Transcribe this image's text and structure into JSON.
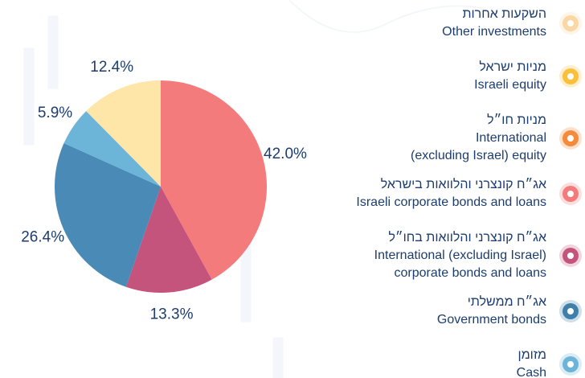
{
  "chart_data": {
    "type": "pie",
    "values": [
      42.0,
      13.3,
      26.4,
      5.9,
      12.4
    ],
    "value_labels": [
      "42.0%",
      "13.3%",
      "26.4%",
      "5.9%",
      "12.4%"
    ],
    "colors": [
      "#f47b7b",
      "#c4547b",
      "#4a8ab6",
      "#6cb5d9",
      "#fde6a8"
    ],
    "legend": [
      {
        "hebrew": "השקעות אחרות",
        "english": [
          "Other investments"
        ],
        "color": "#fcd7a6"
      },
      {
        "hebrew": "מניות ישראל",
        "english": [
          "Israeli equity"
        ],
        "color": "#fbbf3a"
      },
      {
        "hebrew": "מניות חו״ל",
        "english": [
          "International",
          "(excluding Israel) equity"
        ],
        "color": "#f58a3a"
      },
      {
        "hebrew": "אג״ח קונצרני והלוואות בישראל",
        "english": [
          "Israeli corporate bonds and loans"
        ],
        "color": "#f47b7b"
      },
      {
        "hebrew": "אג״ח קונצרני והלוואות בחו״ל",
        "english": [
          "International (excluding Israel)",
          "corporate bonds and loans"
        ],
        "color": "#c4547b"
      },
      {
        "hebrew": "אג״ח ממשלתי",
        "english": [
          "Government bonds"
        ],
        "color": "#3f7fa9"
      },
      {
        "hebrew": "מזומן",
        "english": [
          "Cash"
        ],
        "color": "#6cb5d9"
      }
    ]
  }
}
